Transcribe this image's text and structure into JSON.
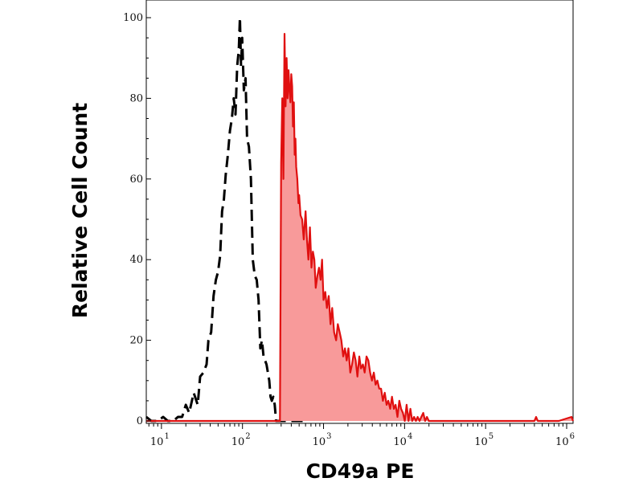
{
  "chart_data": {
    "type": "area",
    "xlabel": "CD49a PE",
    "ylabel": "Relative Cell Count",
    "x_scale": "log",
    "xlim": [
      6.5,
      1200000
    ],
    "ylim": [
      0,
      100
    ],
    "x_ticks": [
      {
        "base": "10",
        "exp": "1",
        "value": 10
      },
      {
        "base": "10",
        "exp": "2",
        "value": 100
      },
      {
        "base": "10",
        "exp": "3",
        "value": 1000
      },
      {
        "base": "10",
        "exp": "4",
        "value": 10000
      },
      {
        "base": "10",
        "exp": "5",
        "value": 100000
      },
      {
        "base": "10",
        "exp": "6",
        "value": 1000000
      }
    ],
    "y_ticks": [
      "0",
      "20",
      "40",
      "60",
      "80",
      "100"
    ],
    "series": [
      {
        "style": "dashed",
        "color": "#000000",
        "fill": "none",
        "points": [
          [
            6.5,
            1
          ],
          [
            7.5,
            0
          ],
          [
            9,
            0
          ],
          [
            10.5,
            1
          ],
          [
            12,
            0
          ],
          [
            14,
            0
          ],
          [
            16,
            1
          ],
          [
            18,
            1
          ],
          [
            20,
            4
          ],
          [
            22,
            2
          ],
          [
            25,
            7
          ],
          [
            28,
            4
          ],
          [
            30,
            11
          ],
          [
            33,
            12
          ],
          [
            36,
            14
          ],
          [
            38,
            20
          ],
          [
            41,
            22
          ],
          [
            44,
            31
          ],
          [
            47,
            35
          ],
          [
            50,
            37
          ],
          [
            53,
            41
          ],
          [
            56,
            52
          ],
          [
            59,
            55
          ],
          [
            62,
            61
          ],
          [
            66,
            66
          ],
          [
            70,
            72
          ],
          [
            74,
            75
          ],
          [
            78,
            80
          ],
          [
            82,
            76
          ],
          [
            86,
            88
          ],
          [
            90,
            92
          ],
          [
            93,
            100
          ],
          [
            96,
            88
          ],
          [
            99,
            95
          ],
          [
            104,
            82
          ],
          [
            109,
            85
          ],
          [
            114,
            70
          ],
          [
            120,
            68
          ],
          [
            127,
            60
          ],
          [
            134,
            40
          ],
          [
            142,
            36
          ],
          [
            150,
            35
          ],
          [
            158,
            30
          ],
          [
            166,
            18
          ],
          [
            174,
            20
          ],
          [
            182,
            16
          ],
          [
            190,
            15
          ],
          [
            198,
            14
          ],
          [
            206,
            12
          ],
          [
            214,
            10
          ],
          [
            222,
            6
          ],
          [
            230,
            5
          ],
          [
            240,
            6
          ],
          [
            250,
            4
          ],
          [
            260,
            0
          ],
          [
            300,
            0
          ],
          [
            400,
            0
          ],
          [
            500,
            0
          ],
          [
            600,
            0
          ]
        ]
      },
      {
        "style": "solid",
        "color": "#e01010",
        "fill": "#f89a9a",
        "points": [
          [
            6.5,
            0
          ],
          [
            100,
            0
          ],
          [
            200,
            0
          ],
          [
            270,
            0
          ],
          [
            290,
            0
          ],
          [
            300,
            64
          ],
          [
            310,
            80
          ],
          [
            320,
            60
          ],
          [
            330,
            96
          ],
          [
            340,
            78
          ],
          [
            350,
            90
          ],
          [
            360,
            80
          ],
          [
            370,
            87
          ],
          [
            380,
            82
          ],
          [
            390,
            79
          ],
          [
            400,
            86
          ],
          [
            410,
            83
          ],
          [
            420,
            73
          ],
          [
            430,
            79
          ],
          [
            440,
            66
          ],
          [
            450,
            70
          ],
          [
            460,
            63
          ],
          [
            475,
            60
          ],
          [
            490,
            54
          ],
          [
            500,
            56
          ],
          [
            520,
            51
          ],
          [
            545,
            50
          ],
          [
            570,
            45
          ],
          [
            600,
            52
          ],
          [
            625,
            45
          ],
          [
            650,
            40
          ],
          [
            680,
            48
          ],
          [
            710,
            38
          ],
          [
            740,
            42
          ],
          [
            770,
            40
          ],
          [
            800,
            33
          ],
          [
            840,
            36
          ],
          [
            880,
            38
          ],
          [
            920,
            35
          ],
          [
            960,
            40
          ],
          [
            1000,
            30
          ],
          [
            1050,
            32
          ],
          [
            1100,
            28
          ],
          [
            1160,
            31
          ],
          [
            1220,
            24
          ],
          [
            1280,
            28
          ],
          [
            1350,
            22
          ],
          [
            1430,
            20
          ],
          [
            1500,
            24
          ],
          [
            1580,
            22
          ],
          [
            1660,
            20
          ],
          [
            1750,
            16
          ],
          [
            1840,
            18
          ],
          [
            1930,
            15
          ],
          [
            2030,
            18
          ],
          [
            2140,
            12
          ],
          [
            2250,
            14
          ],
          [
            2370,
            17
          ],
          [
            2490,
            15
          ],
          [
            2620,
            11
          ],
          [
            2760,
            16
          ],
          [
            2900,
            13
          ],
          [
            3060,
            14
          ],
          [
            3220,
            12
          ],
          [
            3390,
            16
          ],
          [
            3570,
            15
          ],
          [
            3760,
            12
          ],
          [
            3960,
            10
          ],
          [
            4170,
            12
          ],
          [
            4390,
            9
          ],
          [
            4620,
            10
          ],
          [
            4870,
            8
          ],
          [
            5130,
            8
          ],
          [
            5400,
            5
          ],
          [
            5690,
            7
          ],
          [
            6000,
            4
          ],
          [
            6300,
            5
          ],
          [
            6650,
            3
          ],
          [
            7000,
            6
          ],
          [
            7370,
            3
          ],
          [
            7760,
            4
          ],
          [
            8170,
            1
          ],
          [
            8600,
            5
          ],
          [
            9060,
            3
          ],
          [
            9540,
            2
          ],
          [
            10050,
            0
          ],
          [
            10600,
            4
          ],
          [
            11200,
            0
          ],
          [
            11800,
            3
          ],
          [
            12400,
            0
          ],
          [
            13100,
            1
          ],
          [
            13800,
            0
          ],
          [
            14500,
            1
          ],
          [
            15300,
            0
          ],
          [
            16100,
            1
          ],
          [
            17000,
            2
          ],
          [
            17900,
            0
          ],
          [
            18900,
            1
          ],
          [
            19900,
            0
          ],
          [
            21000,
            0
          ],
          [
            30000,
            0
          ],
          [
            60000,
            0
          ],
          [
            100000,
            0
          ],
          [
            200000,
            0
          ],
          [
            400000,
            0
          ],
          [
            420000,
            1
          ],
          [
            440000,
            0
          ],
          [
            800000,
            0
          ],
          [
            1150000,
            1
          ],
          [
            1200000,
            0
          ]
        ]
      }
    ]
  }
}
